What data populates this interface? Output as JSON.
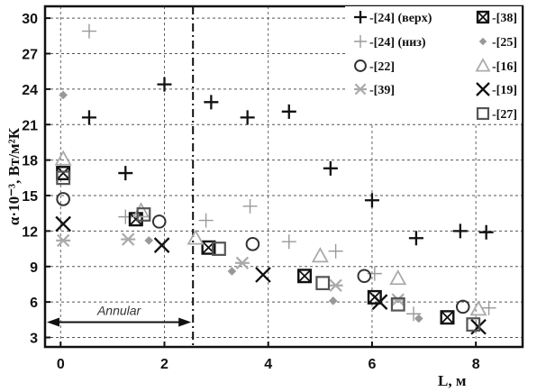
{
  "chart_data": {
    "type": "scatter",
    "xlabel": "L, м",
    "ylabel": "α·10⁻³, Вт/м²К",
    "xlim": [
      -0.3,
      8.9
    ],
    "ylim": [
      2.2,
      31
    ],
    "xticks": [
      0,
      2,
      4,
      6,
      8
    ],
    "yticks": [
      3,
      6,
      9,
      12,
      15,
      18,
      21,
      24,
      27,
      30
    ],
    "grid": true,
    "legend_position": "top-right",
    "divider_x": 2.55,
    "annotation": {
      "text": "Annular",
      "x_from": -0.3,
      "x_to": 2.55,
      "y": 4.3
    },
    "series": [
      {
        "name": "-[24] (верх)",
        "marker": "plus",
        "color": "#111111",
        "points": [
          [
            0.55,
            21.6
          ],
          [
            1.25,
            16.9
          ],
          [
            2.0,
            24.4
          ],
          [
            2.9,
            22.9
          ],
          [
            3.6,
            21.6
          ],
          [
            4.4,
            22.1
          ],
          [
            5.2,
            17.3
          ],
          [
            6.0,
            14.6
          ],
          [
            6.85,
            11.4
          ],
          [
            7.7,
            12.0
          ],
          [
            8.2,
            11.9
          ]
        ]
      },
      {
        "name": "-[24] (низ)",
        "marker": "plus-thin",
        "color": "#999999",
        "points": [
          [
            0.55,
            28.9
          ],
          [
            1.25,
            13.2
          ],
          [
            2.8,
            12.9
          ],
          [
            3.65,
            14.1
          ],
          [
            4.4,
            11.1
          ],
          [
            5.3,
            10.3
          ],
          [
            6.05,
            8.4
          ],
          [
            6.8,
            5.0
          ],
          [
            8.25,
            5.5
          ]
        ]
      },
      {
        "name": "-[22]",
        "marker": "circle",
        "color": "#333333",
        "points": [
          [
            0.05,
            14.7
          ],
          [
            1.9,
            12.8
          ],
          [
            3.7,
            10.9
          ],
          [
            5.85,
            8.2
          ],
          [
            7.75,
            5.6
          ]
        ]
      },
      {
        "name": "-[39]",
        "marker": "asterisk",
        "color": "#aaaaaa",
        "points": [
          [
            0.05,
            11.2
          ],
          [
            1.3,
            11.3
          ],
          [
            3.5,
            9.3
          ],
          [
            5.3,
            7.4
          ],
          [
            6.5,
            6.2
          ]
        ]
      },
      {
        "name": "-[38]",
        "marker": "square-x",
        "color": "#111111",
        "points": [
          [
            0.05,
            16.9
          ],
          [
            1.45,
            13.0
          ],
          [
            2.85,
            10.6
          ],
          [
            4.7,
            8.2
          ],
          [
            6.05,
            6.4
          ],
          [
            7.45,
            4.7
          ]
        ]
      },
      {
        "name": "-[25]",
        "marker": "diamond",
        "color": "#999999",
        "points": [
          [
            0.05,
            23.5
          ],
          [
            1.7,
            11.2
          ],
          [
            3.3,
            8.6
          ],
          [
            5.25,
            6.1
          ],
          [
            6.9,
            4.6
          ]
        ]
      },
      {
        "name": "-[16]",
        "marker": "triangle",
        "color": "#aaaaaa",
        "points": [
          [
            0.05,
            18.1
          ],
          [
            1.55,
            13.7
          ],
          [
            2.6,
            11.4
          ],
          [
            5.0,
            9.9
          ],
          [
            6.5,
            8.0
          ],
          [
            8.05,
            5.4
          ]
        ]
      },
      {
        "name": "-[19]",
        "marker": "x",
        "color": "#111111",
        "points": [
          [
            0.05,
            12.6
          ],
          [
            1.95,
            10.8
          ],
          [
            3.9,
            8.3
          ],
          [
            6.15,
            6.0
          ],
          [
            8.05,
            3.9
          ]
        ]
      },
      {
        "name": "-[27]",
        "marker": "square",
        "color": "#555555",
        "points": [
          [
            0.05,
            16.5
          ],
          [
            1.6,
            13.4
          ],
          [
            3.05,
            10.5
          ],
          [
            5.05,
            7.6
          ],
          [
            6.5,
            5.8
          ],
          [
            7.95,
            4.1
          ]
        ]
      }
    ]
  }
}
